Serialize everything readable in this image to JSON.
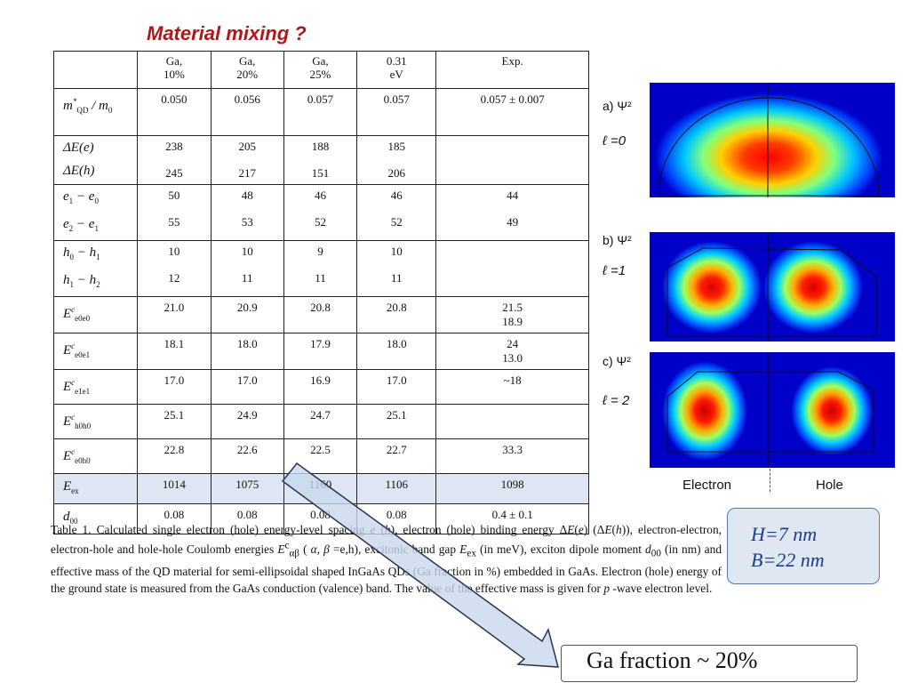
{
  "title": "Material mixing ?",
  "table": {
    "headers": [
      "",
      "Ga,\n10%",
      "Ga,\n20%",
      "Ga,\n25%",
      "0.31\neV",
      "Exp."
    ],
    "rows": [
      {
        "label_html": "m<sup>*</sup><sub>QD</sub> / m<sub>0</sub>",
        "values": [
          [
            "0.050"
          ],
          [
            "0.056"
          ],
          [
            "0.057"
          ],
          [
            "0.057"
          ],
          [
            "0.057 ± 0.007"
          ]
        ]
      },
      {
        "label_html": "ΔE(e)<br>ΔE(h)",
        "values": [
          [
            "238",
            "245"
          ],
          [
            "205",
            "217"
          ],
          [
            "188",
            "151"
          ],
          [
            "185",
            "206"
          ],
          [
            ""
          ]
        ]
      },
      {
        "label_html": "e<sub>1</sub> − e<sub>0</sub><br>e<sub>2</sub> − e<sub>1</sub>",
        "values": [
          [
            "50",
            "55"
          ],
          [
            "48",
            "53"
          ],
          [
            "46",
            "52"
          ],
          [
            "46",
            "52"
          ],
          [
            "44",
            "49"
          ]
        ]
      },
      {
        "label_html": "h<sub>0</sub> − h<sub>1</sub><br>h<sub>1</sub> − h<sub>2</sub>",
        "values": [
          [
            "10",
            "12"
          ],
          [
            "10",
            "11"
          ],
          [
            "9",
            "11"
          ],
          [
            "10",
            "11"
          ],
          [
            ""
          ]
        ]
      },
      {
        "label_html": "E<sup>c</sup><sub>e0e0</sub>",
        "values": [
          [
            "21.0"
          ],
          [
            "20.9"
          ],
          [
            "20.8"
          ],
          [
            "20.8"
          ],
          [
            "21.5",
            "18.9"
          ]
        ]
      },
      {
        "label_html": "E<sup>c</sup><sub>e0e1</sub>",
        "values": [
          [
            "18.1"
          ],
          [
            "18.0"
          ],
          [
            "17.9"
          ],
          [
            "18.0"
          ],
          [
            "24",
            "13.0"
          ]
        ]
      },
      {
        "label_html": "E<sup>c</sup><sub>e1e1</sub>",
        "values": [
          [
            "17.0"
          ],
          [
            "17.0"
          ],
          [
            "16.9"
          ],
          [
            "17.0"
          ],
          [
            "~18"
          ]
        ]
      },
      {
        "label_html": "E<sup>c</sup><sub>h0h0</sub>",
        "values": [
          [
            "25.1"
          ],
          [
            "24.9"
          ],
          [
            "24.7"
          ],
          [
            "25.1"
          ],
          [
            ""
          ]
        ]
      },
      {
        "label_html": "E<sup>c</sup><sub>e0h0</sub>",
        "values": [
          [
            "22.8"
          ],
          [
            "22.6"
          ],
          [
            "22.5"
          ],
          [
            "22.7"
          ],
          [
            "33.3"
          ]
        ]
      },
      {
        "label_html": "E<sub>ex</sub>",
        "values": [
          [
            "1014"
          ],
          [
            "1075"
          ],
          [
            "1160"
          ],
          [
            "1106"
          ],
          [
            "1098"
          ]
        ],
        "highlight": true
      },
      {
        "label_html": "d<sub>00</sub>",
        "values": [
          [
            "0.08"
          ],
          [
            "0.08"
          ],
          [
            "0.08"
          ],
          [
            "0.08"
          ],
          [
            "0.4 ± 0.1"
          ]
        ]
      }
    ]
  },
  "caption": {
    "label": "Table 1.",
    "text_html": "Calculated single electron (hole) energy-level spacing <i>e</i> (<i>h</i>), electron (hole) binding energy Δ<i>E</i>(<i>e</i>) (Δ<i>E</i>(<i>h</i>)), electron-electron, electron-hole and hole-hole Coulomb energies <i>E</i><sup>c</sup><sub>αβ</sub> ( <i>α</i>, <i>β</i> =e,h), excitonic band gap <i>E</i><sub>ex</sub> (in meV), exciton dipole moment <i>d</i><sub>00</sub> (in nm) and effective mass of the QD material for semi-ellipsoidal shaped InGaAs QDs (Ga fraction in %) embedded in GaAs. Electron (hole) energy of the ground state is measured from the GaAs conduction (valence) band. The value of the effective mass is given for <i>p</i> -wave electron level."
  },
  "panels": [
    {
      "label": "a) Ψ²",
      "ell": "ℓ =0"
    },
    {
      "label": "b) Ψ²",
      "ell": "ℓ =1"
    },
    {
      "label": "c) Ψ²",
      "ell": "ℓ = 2"
    }
  ],
  "xlabels": {
    "electron": "Electron",
    "hole": "Hole"
  },
  "param_box": {
    "line1": "H=7 nm",
    "line2": "B=22 nm"
  },
  "result_box": "Ga fraction ~ 20%",
  "colors": {
    "title": "#b01818",
    "panel_bg": "#0000c8",
    "highlight": "#dde6f2",
    "arrow_fill": "#c9d8ec",
    "arrow_stroke": "#26364f",
    "param_text": "#1a3c8c"
  }
}
